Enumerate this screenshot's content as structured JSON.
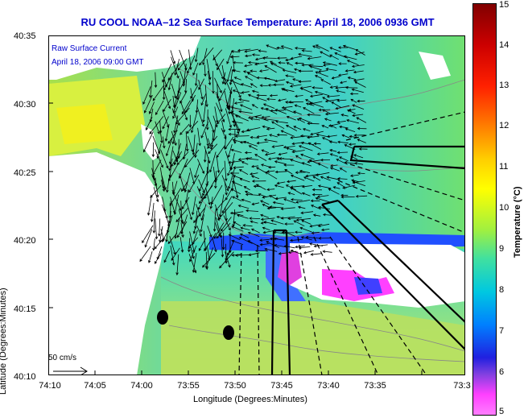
{
  "title": "RU COOL  NOAA–12  Sea Surface Temperature:  April 18, 2006 0936 GMT",
  "legend": {
    "line1": "Raw Surface Current",
    "line2": "April 18, 2006 09:00 GMT",
    "scale_label": "50 cm/s"
  },
  "axes": {
    "xlabel": "Longitude (Degrees:Minutes)",
    "ylabel": "Latitude (Degrees:Minutes)",
    "xticks": [
      "74:10",
      "74:05",
      "74:00",
      "73:55",
      "73:50",
      "73:45",
      "73:40",
      "73:35",
      "73:3"
    ],
    "yticks": [
      "40:35",
      "40:30",
      "40:25",
      "40:20",
      "40:15",
      "40:10"
    ]
  },
  "colorbar": {
    "label": "Temperature (°C)",
    "ticks": [
      "15",
      "14",
      "13",
      "12",
      "11",
      "10",
      "9",
      "8",
      "7",
      "6",
      "5"
    ],
    "min": 5,
    "max": 15
  },
  "colors": {
    "title": "#0000cc",
    "land": "#ffffff",
    "sst_cold": "#ff00ff",
    "sst_mid": "#00d0d0",
    "sst_warm": "#ffff00",
    "sst_hot": "#800000"
  }
}
